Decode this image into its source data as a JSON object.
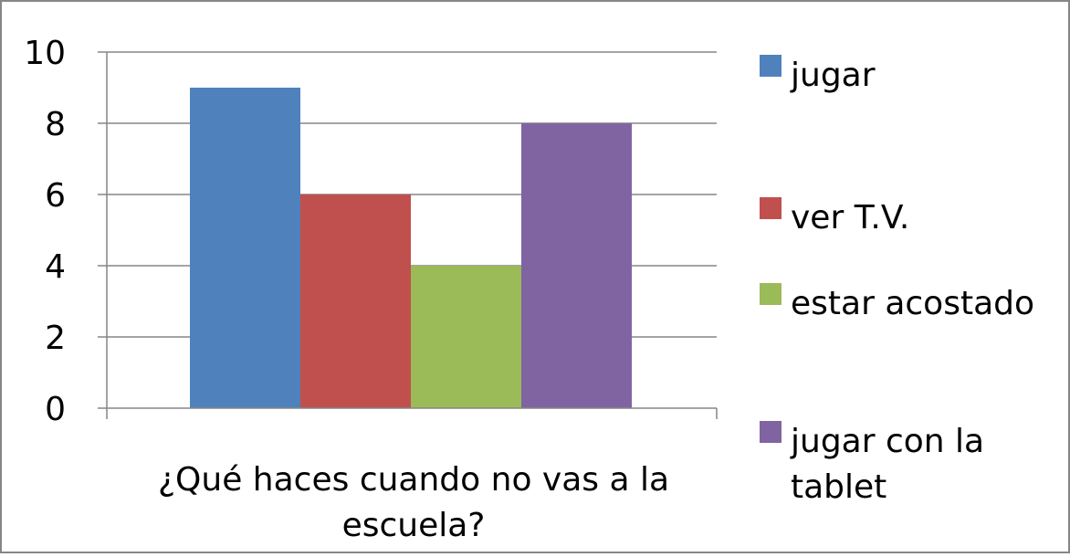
{
  "chart_data": {
    "type": "bar",
    "title": "",
    "xlabel": "",
    "ylabel": "",
    "ylim": [
      0,
      10
    ],
    "yticks": [
      0,
      2,
      4,
      6,
      8,
      10
    ],
    "grid": true,
    "legend_position": "right",
    "category_label_lines": [
      "¿Qué haces cuando no vas a la",
      "escuela?"
    ],
    "categories": [
      "¿Qué haces cuando no vas a la escuela?"
    ],
    "series": [
      {
        "name": "jugar",
        "legend_lines": [
          "jugar"
        ],
        "color": "#4F81BD",
        "values": [
          9
        ]
      },
      {
        "name": "ver T.V.",
        "legend_lines": [
          "ver T.V."
        ],
        "color": "#C0504D",
        "values": [
          6
        ]
      },
      {
        "name": "estar acostado",
        "legend_lines": [
          "estar acostado"
        ],
        "color": "#9BBB59",
        "values": [
          4
        ]
      },
      {
        "name": "jugar con la tablet",
        "legend_lines": [
          "jugar con la",
          "tablet"
        ],
        "color": "#8064A2",
        "values": [
          8
        ]
      }
    ]
  }
}
